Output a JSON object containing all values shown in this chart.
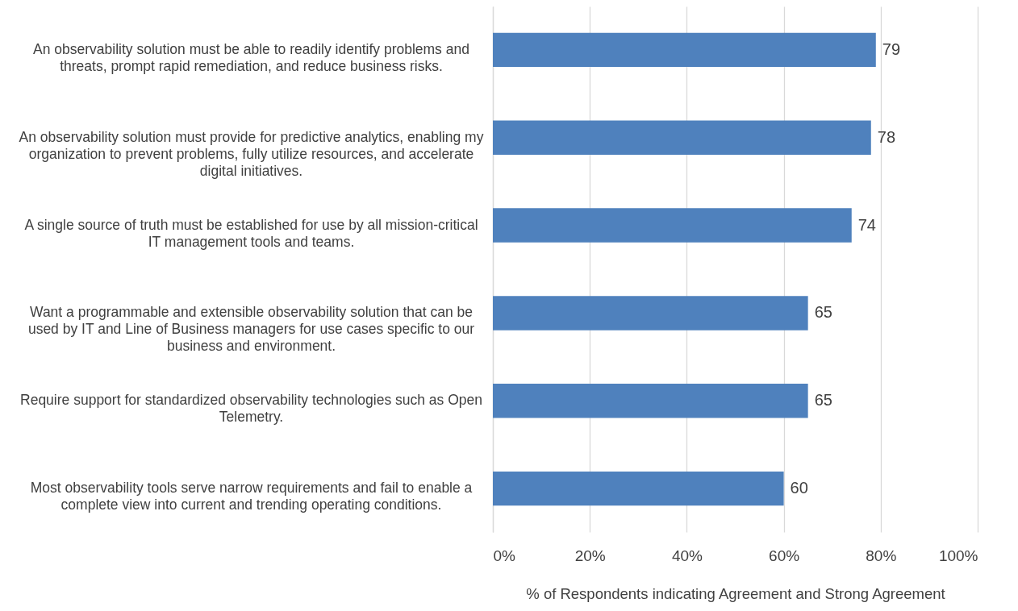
{
  "chart_data": {
    "type": "bar",
    "orientation": "horizontal",
    "categories": [
      "An observability solution must be able to readily identify problems and threats, prompt rapid remediation, and reduce business risks.",
      "An observability solution must provide for predictive analytics, enabling my organization to prevent problems, fully utilize resources, and accelerate digital initiatives.",
      "A single source of truth must be established for use by all mission-critical IT management tools and teams.",
      "Want a programmable and extensible observability solution that can be used by IT and Line of Business managers for use cases specific to our business and environment.",
      "Require support for standardized observability technologies such as Open Telemetry.",
      "Most observability tools serve narrow requirements and fail to enable a complete view into current and trending operating conditions."
    ],
    "values": [
      79,
      78,
      74,
      65,
      65,
      60
    ],
    "color": "#4f81bd",
    "xlim": [
      0,
      100
    ],
    "xticks": [
      {
        "value": 0,
        "label": "0%"
      },
      {
        "value": 20,
        "label": "20%"
      },
      {
        "value": 40,
        "label": "40%"
      },
      {
        "value": 60,
        "label": "60%"
      },
      {
        "value": 80,
        "label": "80%"
      },
      {
        "value": 100,
        "label": "100%"
      }
    ],
    "xlabel": "% of Respondents indicating Agreement and Strong Agreement",
    "grid": "x",
    "data_labels": true
  }
}
